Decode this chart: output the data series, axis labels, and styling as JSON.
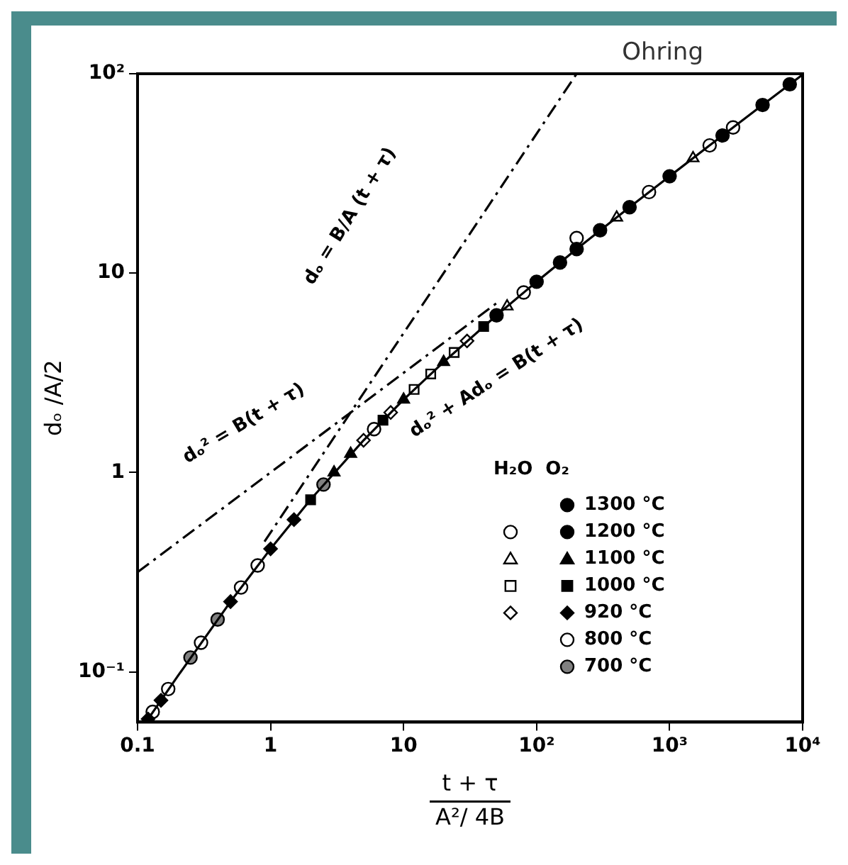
{
  "chart_data": {
    "type": "scatter",
    "xlabel": "t + τ\nA²/ 4B",
    "ylabel": "dₒ /A/2",
    "log": "xy",
    "xlim": [
      0.1,
      10000
    ],
    "ylim": [
      0.056,
      100
    ],
    "xticks": [
      {
        "value": 0.1,
        "label": "0.1"
      },
      {
        "value": 1,
        "label": "1"
      },
      {
        "value": 10,
        "label": "10"
      },
      {
        "value": 100,
        "label": "10²"
      },
      {
        "value": 1000,
        "label": "10³"
      },
      {
        "value": 10000,
        "label": "10⁴"
      }
    ],
    "yticks": [
      {
        "value": 0.1,
        "label": "10⁻¹"
      },
      {
        "value": 1,
        "label": "1"
      },
      {
        "value": 10,
        "label": "10"
      },
      {
        "value": 100,
        "label": "10²"
      }
    ],
    "grid": false,
    "legend": "bottom right",
    "legend_title": "H₂O  O₂",
    "annotations": [
      "Ohring",
      "dₒ = B/A (t + τ)",
      "dₒ² = B(t + τ)",
      "dₒ² + Adₒ = B(t + τ)"
    ],
    "series": [
      {
        "type": "line",
        "line_style": "dashed",
        "color": "#000000",
        "x": [
          0.9,
          200
        ],
        "values": [
          0.45,
          100
        ]
      },
      {
        "type": "line",
        "line_style": "dashed",
        "color": "#000000",
        "x": [
          0.1,
          1,
          10,
          50
        ],
        "values": [
          0.316,
          1,
          3.16,
          7.07
        ]
      },
      {
        "type": "line",
        "line_style": "solid",
        "color": "#000000",
        "x": [
          0.12,
          0.2,
          0.5,
          1,
          2,
          5,
          10,
          20,
          50,
          100,
          200,
          500,
          1000,
          2000,
          5000,
          10000
        ],
        "values": [
          0.058,
          0.095,
          0.225,
          0.414,
          0.732,
          1.45,
          2.32,
          3.58,
          6.14,
          9.05,
          13.2,
          21.4,
          30.6,
          43.7,
          69.7,
          99
        ]
      },
      {
        "name": "1300 °C",
        "marker": "circle",
        "color": "#000000",
        "x": [
          50,
          100,
          150,
          200
        ],
        "values": [
          6.14,
          9.05,
          11.3,
          13.2
        ]
      },
      {
        "marker": "circle",
        "color": "#ffffff",
        "x": [
          200,
          700,
          2000,
          3000
        ],
        "values": [
          15,
          25.5,
          43.7,
          53.8
        ]
      },
      {
        "name": "1200 °C",
        "marker": "circle",
        "color": "#000000",
        "x": [
          300,
          500,
          1000,
          2500,
          5000,
          8000
        ],
        "values": [
          16.4,
          21.4,
          30.6,
          49,
          69.7,
          88.5
        ]
      },
      {
        "marker": "triangle",
        "color": "#ffffff",
        "x": [
          60,
          400,
          1500
        ],
        "values": [
          6.81,
          19,
          37.7
        ]
      },
      {
        "name": "1100 °C",
        "marker": "triangle",
        "color": "#000000",
        "x": [
          3,
          4,
          10,
          20
        ],
        "values": [
          1,
          1.24,
          2.32,
          3.58
        ]
      },
      {
        "marker": "square",
        "color": "#ffffff",
        "x": [
          12,
          16,
          24
        ],
        "values": [
          2.61,
          3.12,
          4
        ]
      },
      {
        "name": "1000 °C",
        "marker": "square",
        "color": "#000000",
        "x": [
          2,
          7,
          40
        ],
        "values": [
          0.73,
          1.83,
          5.4
        ]
      },
      {
        "marker": "diamond",
        "color": "#ffffff",
        "x": [
          5,
          8,
          30
        ],
        "values": [
          1.45,
          2,
          4.57
        ]
      },
      {
        "name": "920 °C",
        "marker": "diamond",
        "color": "#000000",
        "x": [
          0.12,
          0.15,
          0.5,
          1,
          1.5
        ],
        "values": [
          0.058,
          0.072,
          0.225,
          0.414,
          0.58
        ]
      },
      {
        "name": "800 °C",
        "marker": "circle",
        "color": "#ffffff",
        "x": [
          0.13,
          0.17,
          0.3,
          0.6,
          0.8,
          6,
          80
        ],
        "values": [
          0.063,
          0.082,
          0.14,
          0.265,
          0.342,
          1.65,
          8
        ]
      },
      {
        "name": "700 °C",
        "marker": "circle",
        "color": "#808080",
        "x": [
          0.25,
          0.4,
          2.5
        ],
        "values": [
          0.118,
          0.183,
          0.87
        ]
      }
    ]
  }
}
